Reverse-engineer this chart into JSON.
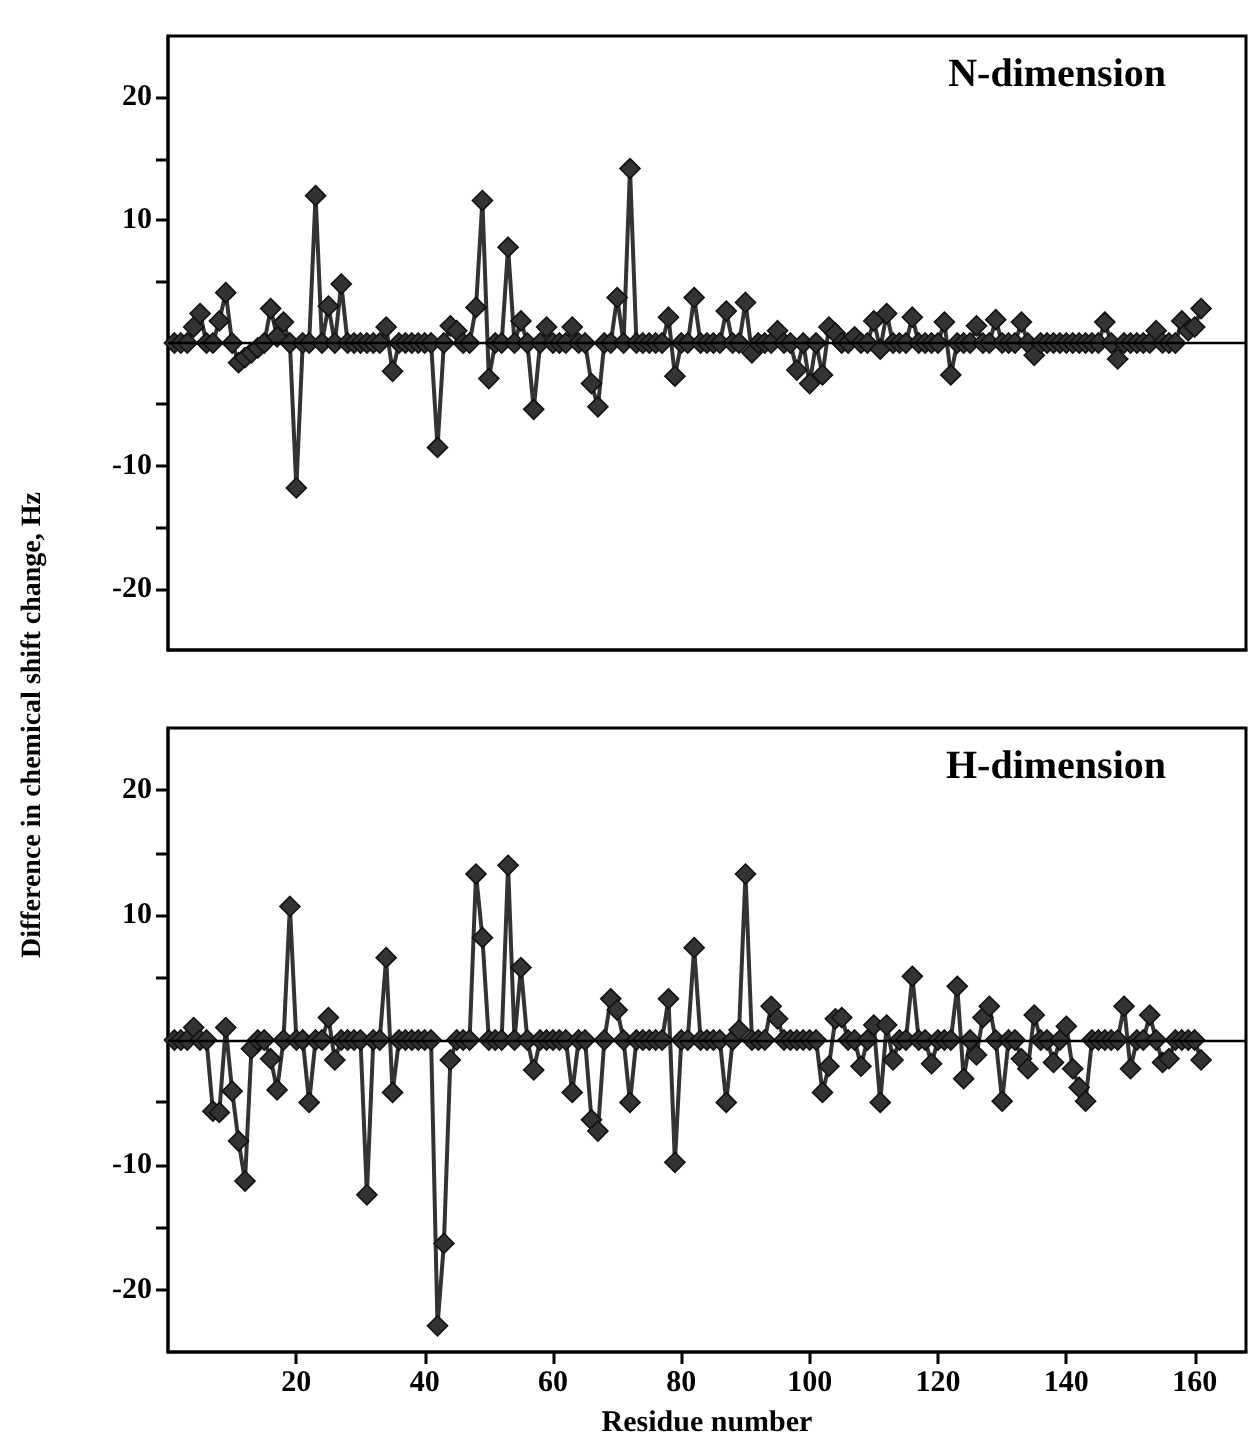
{
  "chart_data": [
    {
      "type": "line",
      "title": "N-dimension",
      "ylabel": "Difference in chemical shift change, Hz",
      "marker": "diamond",
      "tick_labels": "y",
      "xlim": [
        0,
        168
      ],
      "ylim": [
        -25,
        25
      ],
      "yticks": [
        -20,
        {
          "value": -15,
          "label": null
        },
        -10,
        {
          "value": -5,
          "label": null
        },
        {
          "value": 5,
          "label": null
        },
        10,
        {
          "value": 15,
          "label": null
        },
        20
      ],
      "ref_lines": [
        {
          "axis": "y",
          "value": 0,
          "color": "#000000"
        }
      ],
      "x": [
        1,
        2,
        3,
        4,
        5,
        6,
        7,
        8,
        9,
        10,
        11,
        12,
        13,
        14,
        15,
        16,
        17,
        18,
        19,
        20,
        21,
        22,
        23,
        24,
        25,
        26,
        27,
        28,
        29,
        30,
        31,
        32,
        33,
        34,
        35,
        36,
        37,
        38,
        39,
        40,
        41,
        42,
        43,
        44,
        45,
        46,
        47,
        48,
        49,
        50,
        51,
        52,
        53,
        54,
        55,
        56,
        57,
        58,
        59,
        60,
        61,
        62,
        63,
        64,
        65,
        66,
        67,
        68,
        69,
        70,
        71,
        72,
        73,
        74,
        75,
        76,
        77,
        78,
        79,
        80,
        81,
        82,
        83,
        84,
        85,
        86,
        87,
        88,
        89,
        90,
        91,
        92,
        93,
        94,
        95,
        96,
        97,
        98,
        99,
        100,
        101,
        102,
        103,
        104,
        105,
        106,
        107,
        108,
        109,
        110,
        111,
        112,
        113,
        114,
        115,
        116,
        117,
        118,
        119,
        120,
        121,
        122,
        123,
        124,
        125,
        126,
        127,
        128,
        129,
        130,
        131,
        132,
        133,
        134,
        135,
        136,
        137,
        138,
        139,
        140,
        141,
        142,
        143,
        144,
        145,
        146,
        147,
        148,
        149,
        150,
        151,
        152,
        153,
        154,
        155,
        156,
        157,
        158,
        159,
        160,
        161
      ],
      "series": [
        {
          "color": "#333333",
          "values": [
            0,
            0,
            0,
            1.3,
            2.4,
            0,
            0,
            1.8,
            4.1,
            0,
            -1.6,
            -1.2,
            -0.8,
            -0.4,
            0,
            2.8,
            0.5,
            1.7,
            0,
            -11.8,
            0,
            0,
            12.0,
            0,
            3.0,
            0,
            4.8,
            0,
            0,
            0,
            0,
            0,
            0,
            1.3,
            -2.3,
            0,
            0,
            0,
            0,
            0,
            0,
            -8.5,
            0,
            1.4,
            1.0,
            0,
            0,
            2.9,
            11.6,
            -2.9,
            0,
            0,
            7.8,
            0,
            1.8,
            0,
            -5.4,
            0,
            1.3,
            0,
            0,
            0,
            1.3,
            0,
            0,
            -3.3,
            -5.2,
            0,
            0,
            3.7,
            0,
            14.2,
            0,
            0,
            0,
            0,
            0,
            2.1,
            -2.7,
            0,
            0,
            3.7,
            0,
            0,
            0,
            0,
            2.6,
            0,
            0,
            3.3,
            -0.8,
            0,
            0,
            0,
            1.0,
            0,
            0,
            -2.2,
            0,
            -3.3,
            0,
            -2.6,
            1.3,
            0.8,
            0,
            0,
            0.5,
            0,
            0,
            1.8,
            -0.5,
            2.4,
            0,
            0,
            0,
            2.1,
            0,
            0,
            0,
            0,
            1.7,
            -2.6,
            0,
            0,
            0,
            1.4,
            0,
            0,
            1.9,
            0,
            0,
            0,
            1.7,
            0,
            -1.0,
            0,
            0,
            0,
            0,
            0,
            0,
            0,
            0,
            0,
            0,
            1.7,
            0,
            -1.3,
            0,
            0,
            0,
            0,
            0,
            1.0,
            0,
            0,
            0,
            1.8,
            1.0,
            1.3,
            2.8
          ]
        }
      ]
    },
    {
      "type": "line",
      "title": "H-dimension",
      "xlabel": "Residue number",
      "marker": "diamond",
      "xlim": [
        0,
        168
      ],
      "ylim": [
        -25,
        25
      ],
      "xticks": [
        20,
        40,
        60,
        80,
        100,
        120,
        140,
        160
      ],
      "yticks": [
        -20,
        {
          "value": -15,
          "label": null
        },
        -10,
        {
          "value": -5,
          "label": null
        },
        {
          "value": 5,
          "label": null
        },
        10,
        {
          "value": 15,
          "label": null
        },
        20
      ],
      "ref_lines": [
        {
          "axis": "y",
          "value": 0,
          "color": "#000000"
        }
      ],
      "x": [
        1,
        2,
        3,
        4,
        5,
        6,
        7,
        8,
        9,
        10,
        11,
        12,
        13,
        14,
        15,
        16,
        17,
        18,
        19,
        20,
        21,
        22,
        23,
        24,
        25,
        26,
        27,
        28,
        29,
        30,
        31,
        32,
        33,
        34,
        35,
        36,
        37,
        38,
        39,
        40,
        41,
        42,
        43,
        44,
        45,
        46,
        47,
        48,
        49,
        50,
        51,
        52,
        53,
        54,
        55,
        56,
        57,
        58,
        59,
        60,
        61,
        62,
        63,
        64,
        65,
        66,
        67,
        68,
        69,
        70,
        71,
        72,
        73,
        74,
        75,
        76,
        77,
        78,
        79,
        80,
        81,
        82,
        83,
        84,
        85,
        86,
        87,
        88,
        89,
        90,
        91,
        92,
        93,
        94,
        95,
        96,
        97,
        98,
        99,
        100,
        101,
        102,
        103,
        104,
        105,
        106,
        107,
        108,
        109,
        110,
        111,
        112,
        113,
        114,
        115,
        116,
        117,
        118,
        119,
        120,
        121,
        122,
        123,
        124,
        125,
        126,
        127,
        128,
        129,
        130,
        131,
        132,
        133,
        134,
        135,
        136,
        137,
        138,
        139,
        140,
        141,
        142,
        143,
        144,
        145,
        146,
        147,
        148,
        149,
        150,
        151,
        152,
        153,
        154,
        155,
        156,
        157,
        158,
        159,
        160,
        161
      ],
      "series": [
        {
          "color": "#333333",
          "values": [
            0,
            0,
            0,
            1.0,
            0,
            0,
            -5.7,
            -5.8,
            1.0,
            -4.1,
            -8.1,
            -11.3,
            -0.7,
            0,
            0,
            -1.5,
            -4.0,
            0,
            10.7,
            0,
            0,
            -5.0,
            0,
            0,
            1.8,
            -1.6,
            0,
            0,
            0,
            0,
            -12.4,
            0,
            0,
            6.6,
            -4.2,
            0,
            0,
            0,
            0,
            0,
            0,
            -22.9,
            -16.3,
            -1.6,
            0,
            0,
            0,
            13.3,
            8.2,
            0,
            0,
            0,
            14.0,
            0,
            5.8,
            0,
            -2.4,
            0,
            0,
            0,
            0,
            0,
            -4.2,
            0,
            0,
            -6.4,
            -7.3,
            0,
            3.3,
            2.4,
            0,
            -5.0,
            0,
            0,
            0,
            0,
            0,
            3.3,
            -9.8,
            0,
            0,
            7.4,
            0,
            0,
            0,
            0,
            -5.0,
            0,
            0.8,
            13.3,
            0,
            0,
            0,
            2.7,
            1.7,
            0,
            0,
            0,
            0,
            0,
            0,
            -4.2,
            -2.1,
            1.7,
            1.8,
            0,
            0,
            -2.1,
            0,
            1.2,
            -5.0,
            1.2,
            -1.6,
            0,
            0,
            5.1,
            0,
            0,
            -1.9,
            0,
            0,
            0,
            4.3,
            -3.1,
            0,
            -1.2,
            1.8,
            2.7,
            0,
            -4.9,
            0,
            0,
            -1.5,
            -2.3,
            2.0,
            0,
            0,
            -1.8,
            0,
            1.1,
            -2.3,
            -3.8,
            -4.9,
            0,
            0,
            0,
            0,
            0,
            2.7,
            -2.3,
            0,
            0,
            2.0,
            0,
            -1.8,
            -1.5,
            0,
            0,
            0,
            0,
            -1.6
          ]
        }
      ]
    }
  ]
}
